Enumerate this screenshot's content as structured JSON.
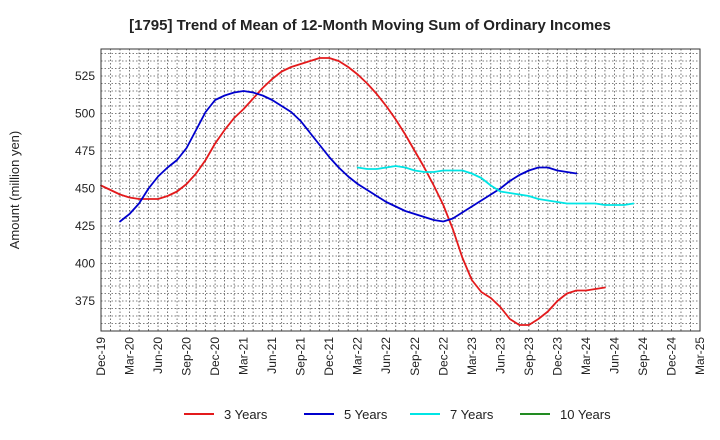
{
  "chart_data": {
    "type": "line",
    "title": "[1795]  Trend of Mean of 12-Month Moving Sum of Ordinary Incomes",
    "ylabel": "Amount (million yen)",
    "xlabel": "",
    "ylim": [
      355,
      543
    ],
    "yticks": [
      375,
      400,
      425,
      450,
      475,
      500,
      525
    ],
    "xticks": [
      "Dec-19",
      "Mar-20",
      "Jun-20",
      "Sep-20",
      "Dec-20",
      "Mar-21",
      "Jun-21",
      "Sep-21",
      "Dec-21",
      "Mar-22",
      "Jun-22",
      "Sep-22",
      "Dec-22",
      "Mar-23",
      "Jun-23",
      "Sep-23",
      "Dec-23",
      "Mar-24",
      "Jun-24",
      "Sep-24",
      "Dec-24",
      "Mar-25"
    ],
    "x_start": "Dec-19",
    "legend_position": "bottom",
    "series": [
      {
        "name": "3 Years",
        "color": "#e31a1c",
        "start_index": 0,
        "values": [
          452,
          449,
          446,
          444,
          443,
          443,
          443,
          445,
          448,
          453,
          460,
          469,
          480,
          489,
          497,
          503,
          510,
          517,
          523,
          528,
          531,
          533,
          535,
          537,
          537,
          535,
          531,
          526,
          520,
          513,
          505,
          496,
          486,
          475,
          464,
          452,
          439,
          423,
          404,
          389,
          381,
          377,
          371,
          363,
          359,
          359,
          363,
          368,
          375,
          380,
          382,
          382,
          383,
          384
        ]
      },
      {
        "name": "5 Years",
        "color": "#0000cd",
        "start_index": 2,
        "values": [
          428,
          433,
          440,
          450,
          458,
          464,
          469,
          477,
          489,
          501,
          509,
          512,
          514,
          515,
          514,
          512,
          509,
          505,
          501,
          495,
          487,
          479,
          471,
          464,
          458,
          453,
          449,
          445,
          441,
          438,
          435,
          433,
          431,
          429,
          428,
          430,
          434,
          438,
          442,
          446,
          450,
          455,
          459,
          462,
          464,
          464,
          462,
          461,
          460
        ]
      },
      {
        "name": "7 Years",
        "color": "#00e5e5",
        "start_index": 27,
        "values": [
          464,
          463,
          463,
          464,
          465,
          464,
          462,
          461,
          461,
          462,
          462,
          462,
          460,
          457,
          452,
          448,
          447,
          446,
          445,
          443,
          442,
          441,
          440,
          440,
          440,
          440,
          439,
          439,
          439,
          440
        ]
      },
      {
        "name": "10 Years",
        "color": "#228b22",
        "start_index": 0,
        "values": []
      }
    ]
  }
}
